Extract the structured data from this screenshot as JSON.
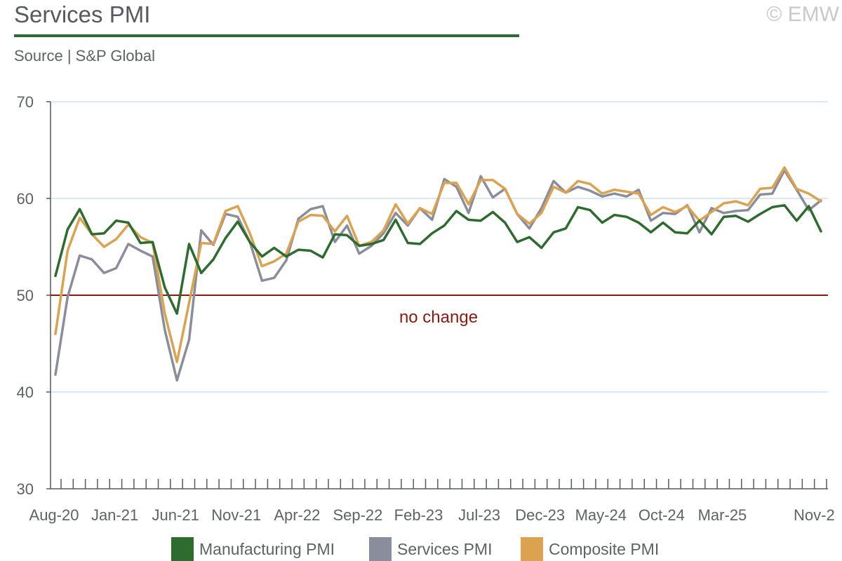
{
  "header": {
    "title": "Services PMI",
    "source": "Source | S&P Global",
    "copyright": "© EMW"
  },
  "colors": {
    "manufacturing": "#2e6b2e",
    "services": "#8a8d9c",
    "composite": "#dba250",
    "reference": "#8b1a10",
    "grid": "#cfe0ee",
    "axis": "#555a5f",
    "title_rule": "#2e6b2e"
  },
  "chart_data": {
    "type": "line",
    "title": "Services PMI",
    "xlabel": "",
    "ylabel": "",
    "ylim": [
      30,
      70
    ],
    "yticks": [
      30,
      40,
      50,
      60,
      70
    ],
    "grid": true,
    "legend_position": "bottom",
    "x_tick_labels": [
      "Aug-20",
      "Jan-21",
      "Jun-21",
      "Nov-21",
      "Apr-22",
      "Sep-22",
      "Feb-23",
      "Jul-23",
      "Dec-23",
      "May-24",
      "Oct-24",
      "Mar-25",
      "Nov-2"
    ],
    "x_tick_label_indices": [
      0,
      5,
      10,
      15,
      20,
      25,
      30,
      35,
      40,
      45,
      50,
      55,
      63
    ],
    "reference_line": {
      "value": 50,
      "label": "no change"
    },
    "series": [
      {
        "name": "Manufacturing PMI",
        "color_key": "manufacturing",
        "values": [
          52.0,
          56.8,
          58.9,
          56.3,
          56.4,
          57.7,
          57.5,
          55.4,
          55.5,
          50.8,
          48.1,
          55.3,
          52.3,
          53.7,
          55.9,
          57.6,
          55.5,
          54.0,
          54.9,
          54.0,
          54.7,
          54.6,
          53.9,
          56.3,
          56.2,
          55.1,
          55.3,
          55.7,
          57.8,
          55.4,
          55.3,
          56.4,
          57.2,
          58.7,
          57.8,
          57.7,
          58.6,
          57.5,
          55.5,
          56.0,
          54.9,
          56.5,
          56.9,
          59.1,
          58.8,
          57.5,
          58.3,
          58.1,
          57.5,
          56.5,
          57.5,
          56.5,
          56.4,
          57.7,
          56.3,
          58.1,
          58.2,
          57.6,
          58.4,
          59.1,
          59.3,
          57.7,
          59.2,
          56.6
        ]
      },
      {
        "name": "Services PMI",
        "color_key": "services",
        "values": [
          41.8,
          49.8,
          54.1,
          53.7,
          52.3,
          52.8,
          55.3,
          54.6,
          54.0,
          46.4,
          41.2,
          45.4,
          56.7,
          55.2,
          58.4,
          58.1,
          55.5,
          51.5,
          51.8,
          53.6,
          57.9,
          58.9,
          59.2,
          55.5,
          57.2,
          54.3,
          55.1,
          56.4,
          58.5,
          57.2,
          59.0,
          57.8,
          62.0,
          61.2,
          58.5,
          62.3,
          60.1,
          61.0,
          58.4,
          56.9,
          59.0,
          61.8,
          60.6,
          61.2,
          60.8,
          60.2,
          60.5,
          60.2,
          60.9,
          57.7,
          58.5,
          58.4,
          59.3,
          56.5,
          59.0,
          58.5,
          58.7,
          58.8,
          60.4,
          60.5,
          62.9,
          60.9,
          58.8,
          59.8
        ]
      },
      {
        "name": "Composite PMI",
        "color_key": "composite",
        "values": [
          46.0,
          54.6,
          58.0,
          56.3,
          55.0,
          55.8,
          57.3,
          56.0,
          55.4,
          48.1,
          43.1,
          49.2,
          55.4,
          55.3,
          58.7,
          59.2,
          56.4,
          53.0,
          53.5,
          54.3,
          57.6,
          58.3,
          58.2,
          56.6,
          58.2,
          55.1,
          55.5,
          56.7,
          59.4,
          57.4,
          59.0,
          58.4,
          61.6,
          61.6,
          59.4,
          61.9,
          61.9,
          61.0,
          58.4,
          57.4,
          58.5,
          61.2,
          60.6,
          61.8,
          61.5,
          60.5,
          60.9,
          60.7,
          60.5,
          58.3,
          59.1,
          58.6,
          59.2,
          57.7,
          58.6,
          59.5,
          59.7,
          59.3,
          61.0,
          61.1,
          63.2,
          61.0,
          60.5,
          59.7
        ]
      }
    ]
  }
}
